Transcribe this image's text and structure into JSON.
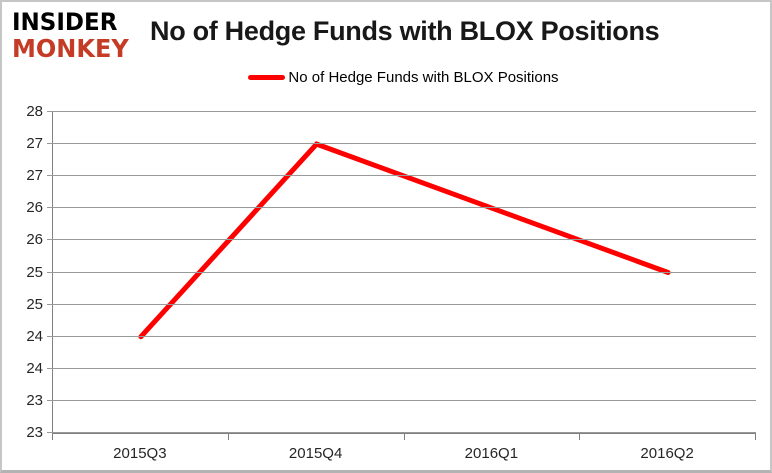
{
  "logo": {
    "line1": "INSIDER",
    "line2": "MONKEY",
    "line1_color": "#000000",
    "line2_color": "#c43b26"
  },
  "header": {
    "title": "No of Hedge Funds with BLOX Positions"
  },
  "legend": {
    "label": "No of Hedge Funds with BLOX Positions",
    "swatch_color": "#ff0000"
  },
  "chart_data": {
    "type": "line",
    "title": "No of Hedge Funds with BLOX Positions",
    "categories": [
      "2015Q3",
      "2015Q4",
      "2016Q1",
      "2016Q2"
    ],
    "series": [
      {
        "name": "No of Hedge Funds with BLOX Positions",
        "values": [
          24,
          27,
          26,
          25
        ],
        "color": "#ff0000",
        "line_width": 5
      }
    ],
    "xlabel": "",
    "ylabel": "",
    "ylim": [
      22.5,
      27.5
    ],
    "ytick_step": 0.5,
    "ytick_labels_bottom_to_top": [
      "23",
      "23",
      "24",
      "24",
      "25",
      "25",
      "26",
      "26",
      "27",
      "27",
      "28"
    ],
    "grid": true,
    "legend_position": "top-center",
    "colors": {
      "gridline": "#999999",
      "axis_line": "#808080",
      "tick_label": "#262626",
      "title_text": "#181818",
      "background": "#ffffff",
      "border": "#c6c6c6"
    }
  }
}
